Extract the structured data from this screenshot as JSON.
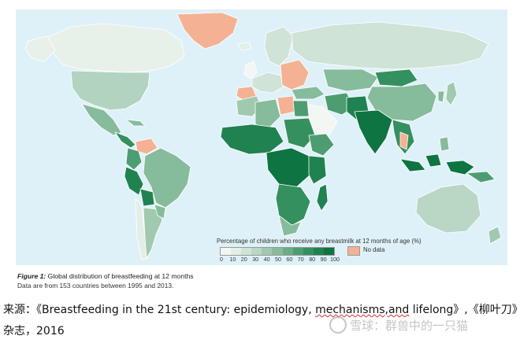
{
  "legend": {
    "title": "Percentage of children who receive any breastmilk at 12 months of age (%)",
    "ticks": [
      "0",
      "10",
      "20",
      "30",
      "40",
      "50",
      "60",
      "70",
      "80",
      "90",
      "100"
    ],
    "nodata_label": "No data",
    "scale_colors": [
      "#f3f7f4",
      "#e3eee7",
      "#cfe3d6",
      "#b9d7c4",
      "#a0c9b0",
      "#86bb9b",
      "#6aac86",
      "#4e9d72",
      "#34905f",
      "#1f8250",
      "#0d7442"
    ],
    "nodata_color": "#f4b193"
  },
  "map_colors": {
    "ocean": "#dff1f8",
    "border": "#ffffff"
  },
  "caption": {
    "figure_label": "Figure 1:",
    "title": " Global distribution of breastfeeding at 12 months",
    "subtitle": "Data are from 153 countries between 1995 and 2013."
  },
  "source": {
    "line1_prefix": "来源：《Breastfeeding in the 21st century: epidemiology, ",
    "line1_underlined": "mechanisms,and",
    "line1_suffix": " lifelong》,《柳叶刀》",
    "line2": "杂志，2016"
  },
  "watermark": {
    "text": "雪球：群兽中的一只猫"
  }
}
